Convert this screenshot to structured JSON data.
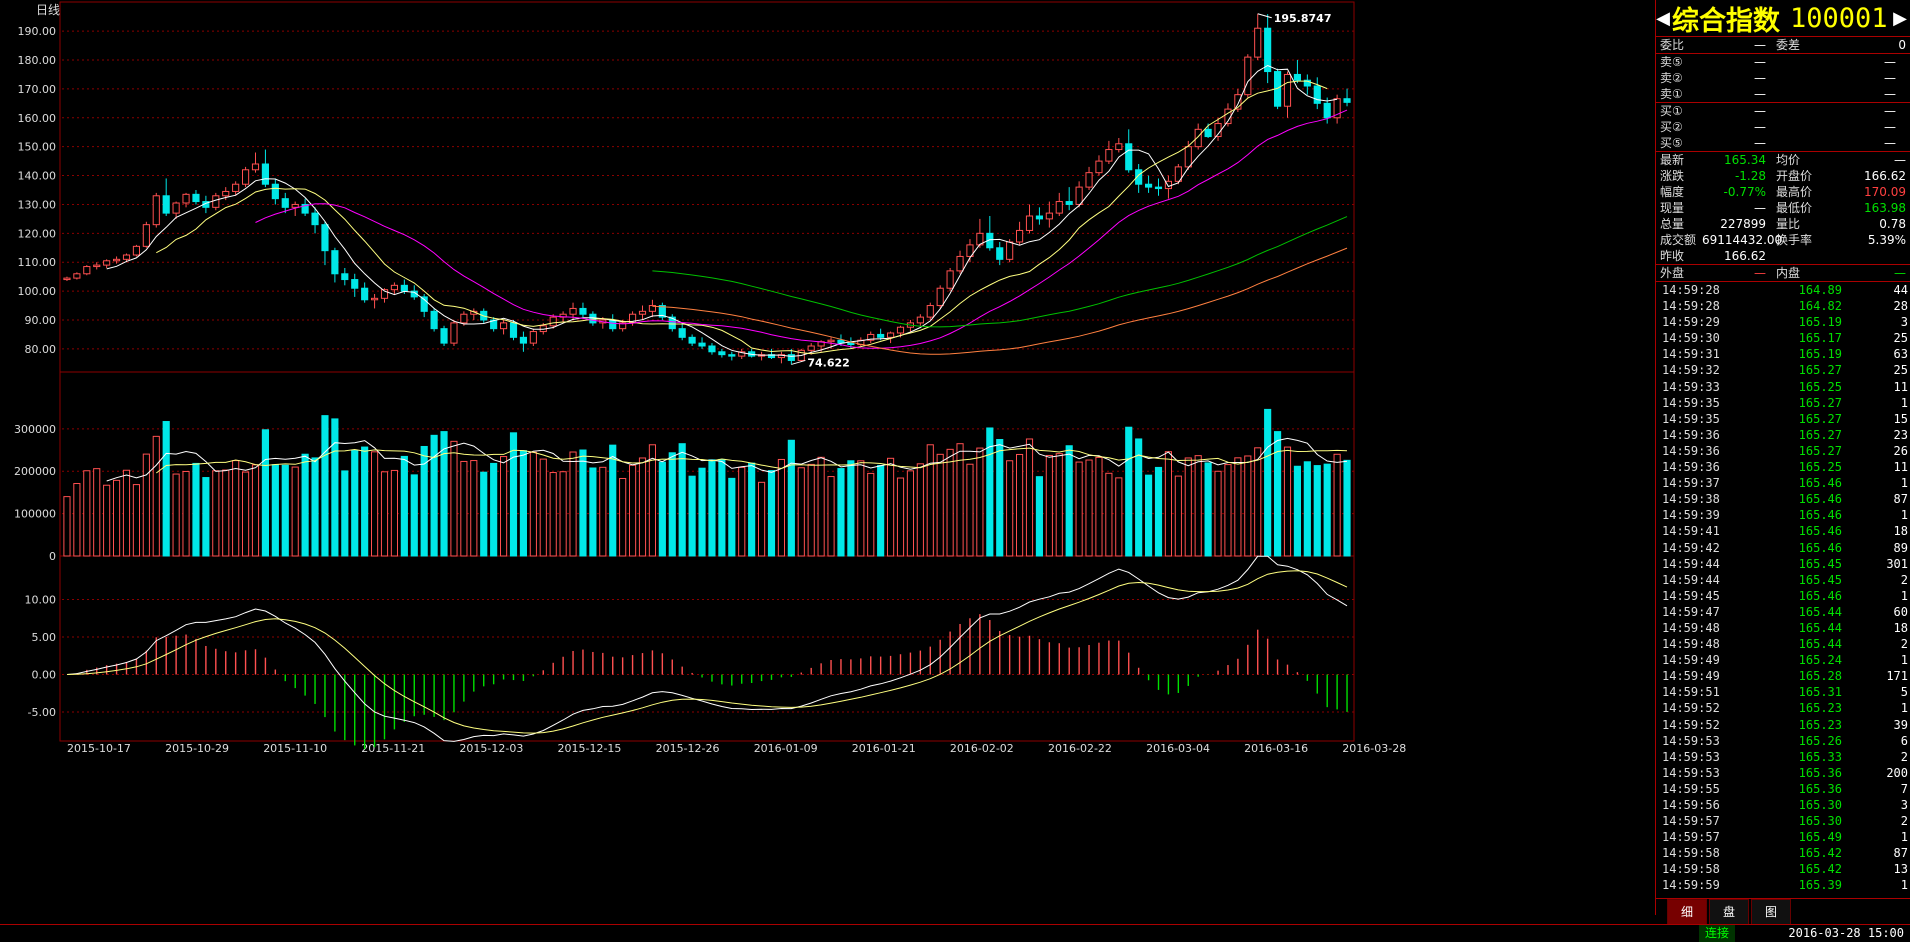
{
  "chart": {
    "period_label": "日线",
    "price_axis": [
      "190.00",
      "180.00",
      "170.00",
      "160.00",
      "150.00",
      "140.00",
      "130.00",
      "120.00",
      "110.00",
      "100.00",
      "90.00",
      "80.00"
    ],
    "vol_axis": [
      "300000",
      "200000",
      "100000",
      "0"
    ],
    "macd_axis": [
      "10.00",
      "5.00",
      "0.00",
      "-5.00"
    ],
    "dates": [
      "2015-10-17",
      "2015-10-29",
      "2015-11-10",
      "2015-11-21",
      "2015-12-03",
      "2015-12-15",
      "2015-12-26",
      "2016-01-09",
      "2016-01-21",
      "2016-02-02",
      "2016-02-22",
      "2016-03-04",
      "2016-03-16",
      "2016-03-28"
    ],
    "high_marker": "195.8747",
    "low_marker": "74.622",
    "colors": {
      "up": "#ff5050",
      "down": "#00e8e8",
      "grid": "#8b0000",
      "ma5": "#ffffff",
      "ma10": "#ffff80",
      "ma20": "#ff00ff",
      "ma60": "#00c000",
      "ma120": "#ff8040"
    }
  },
  "chart_data": {
    "type": "candlestick",
    "title": "",
    "ylim": [
      72,
      198
    ],
    "ohlc": [
      [
        104,
        105,
        103.5,
        104.5
      ],
      [
        104.5,
        106.5,
        104,
        106
      ],
      [
        106,
        109,
        105.5,
        108.5
      ],
      [
        108.5,
        110,
        107.5,
        109
      ],
      [
        109,
        111,
        108,
        110.5
      ],
      [
        110.5,
        112,
        109.5,
        111
      ],
      [
        111,
        113,
        110,
        112.5
      ],
      [
        112.5,
        116,
        112,
        115.5
      ],
      [
        115.5,
        124,
        115,
        123
      ],
      [
        123,
        134,
        122,
        133
      ],
      [
        133,
        139,
        126,
        127
      ],
      [
        127,
        131,
        125,
        130.5
      ],
      [
        130.5,
        134,
        129,
        133.5
      ],
      [
        133.5,
        135,
        130,
        131
      ],
      [
        131,
        133,
        127,
        129
      ],
      [
        129,
        134,
        128,
        133
      ],
      [
        133,
        136,
        131.5,
        134.5
      ],
      [
        134.5,
        138,
        133,
        137
      ],
      [
        137,
        143,
        136,
        142
      ],
      [
        142,
        148,
        141,
        144
      ],
      [
        144,
        149,
        136,
        137
      ],
      [
        137,
        139,
        130,
        132
      ],
      [
        132,
        134,
        127,
        129
      ],
      [
        129,
        131,
        126,
        130
      ],
      [
        130,
        132,
        126,
        127
      ],
      [
        127,
        129,
        120,
        123
      ],
      [
        123,
        124,
        109,
        114
      ],
      [
        114,
        115,
        103,
        106
      ],
      [
        106,
        108,
        102,
        104
      ],
      [
        104,
        106,
        98,
        101
      ],
      [
        101,
        103,
        96,
        97
      ],
      [
        97,
        99,
        94,
        97.5
      ],
      [
        97.5,
        101,
        96,
        100.5
      ],
      [
        100.5,
        103,
        99,
        102
      ],
      [
        102,
        104,
        99,
        100
      ],
      [
        100,
        102,
        97,
        98
      ],
      [
        98,
        99,
        91,
        93
      ],
      [
        93,
        94,
        86,
        87
      ],
      [
        87,
        88,
        81,
        82
      ],
      [
        82,
        90,
        81,
        89
      ],
      [
        89,
        93,
        88,
        92
      ],
      [
        92,
        94,
        90,
        93
      ],
      [
        93,
        94,
        89,
        90
      ],
      [
        90,
        91,
        86,
        87
      ],
      [
        87,
        90,
        85,
        89
      ],
      [
        89,
        90,
        83,
        84
      ],
      [
        84,
        86,
        79,
        82
      ],
      [
        82,
        87,
        81,
        86
      ],
      [
        86,
        89,
        85,
        88
      ],
      [
        88,
        92,
        87,
        91
      ],
      [
        91,
        93,
        89,
        92
      ],
      [
        92,
        96,
        90,
        94
      ],
      [
        94,
        96,
        91,
        92
      ],
      [
        92,
        93,
        88,
        89
      ],
      [
        89,
        91,
        87,
        90
      ],
      [
        90,
        92,
        86,
        87
      ],
      [
        87,
        90,
        86,
        89
      ],
      [
        89,
        93,
        88,
        92
      ],
      [
        92,
        95,
        90,
        93
      ],
      [
        93,
        97,
        91,
        95
      ],
      [
        95,
        96,
        90,
        91
      ],
      [
        91,
        92,
        86,
        87
      ],
      [
        87,
        89,
        83,
        84
      ],
      [
        84,
        85,
        81,
        82
      ],
      [
        82,
        84,
        80,
        81
      ],
      [
        81,
        82,
        78,
        79
      ],
      [
        79,
        80,
        77,
        78
      ],
      [
        78,
        79,
        76,
        77.5
      ],
      [
        77.5,
        80,
        76.5,
        79
      ],
      [
        79,
        80,
        77,
        77.5
      ],
      [
        77.5,
        79,
        76,
        78
      ],
      [
        78,
        80,
        76.5,
        77
      ],
      [
        77,
        79,
        75,
        78
      ],
      [
        78,
        80,
        74.622,
        76
      ],
      [
        76,
        80,
        75.5,
        79.5
      ],
      [
        79.5,
        82,
        78,
        81
      ],
      [
        81,
        83,
        79,
        82.5
      ],
      [
        82.5,
        84,
        80,
        83
      ],
      [
        83,
        85,
        81,
        82
      ],
      [
        82,
        84,
        80,
        81.5
      ],
      [
        81.5,
        84,
        81,
        83
      ],
      [
        83,
        86,
        82,
        85
      ],
      [
        85,
        87,
        83,
        84
      ],
      [
        84,
        86,
        82,
        85.5
      ],
      [
        85.5,
        88,
        84,
        87.5
      ],
      [
        87.5,
        90,
        86,
        89
      ],
      [
        89,
        92,
        88,
        91
      ],
      [
        91,
        96,
        90,
        95
      ],
      [
        95,
        102,
        94,
        101
      ],
      [
        101,
        108,
        100,
        107
      ],
      [
        107,
        114,
        106,
        112
      ],
      [
        112,
        118,
        110,
        116
      ],
      [
        116,
        125,
        115,
        120
      ],
      [
        120,
        126,
        114,
        115
      ],
      [
        115,
        117,
        109,
        111
      ],
      [
        111,
        118,
        110,
        117
      ],
      [
        117,
        124,
        116,
        121
      ],
      [
        121,
        130,
        120,
        126
      ],
      [
        126,
        129,
        123,
        125
      ],
      [
        125,
        131,
        122,
        127
      ],
      [
        127,
        134,
        126,
        131
      ],
      [
        131,
        136,
        128,
        130
      ],
      [
        130,
        138,
        129,
        136
      ],
      [
        136,
        143,
        135,
        141
      ],
      [
        141,
        147,
        140,
        145
      ],
      [
        145,
        152,
        144,
        149
      ],
      [
        149,
        153,
        148,
        151
      ],
      [
        151,
        156,
        141,
        142
      ],
      [
        142,
        144,
        134,
        137
      ],
      [
        137,
        140,
        134,
        136
      ],
      [
        136,
        139,
        133,
        135.5
      ],
      [
        135.5,
        140,
        132,
        138
      ],
      [
        138,
        144,
        137,
        143
      ],
      [
        143,
        152,
        142,
        150
      ],
      [
        150,
        158,
        149,
        156
      ],
      [
        156,
        158,
        153,
        153.5
      ],
      [
        153.5,
        160,
        152,
        158
      ],
      [
        158,
        165,
        157,
        163
      ],
      [
        163,
        170,
        162,
        168
      ],
      [
        168,
        182,
        167,
        181
      ],
      [
        181,
        196,
        180,
        191
      ],
      [
        191,
        195.8747,
        172,
        176
      ],
      [
        176,
        177,
        163,
        164
      ],
      [
        164,
        176,
        160,
        175
      ],
      [
        175,
        180,
        172,
        173
      ],
      [
        173,
        175,
        168,
        171
      ],
      [
        171,
        174,
        163,
        165
      ],
      [
        165,
        167,
        158,
        160
      ],
      [
        160,
        168,
        158,
        166.6
      ],
      [
        166.6,
        170.09,
        163.98,
        165.34
      ]
    ],
    "ma5": [
      null,
      null,
      null,
      null,
      107.7,
      108.6,
      110.3,
      111.5,
      114.3,
      118.9,
      122.1,
      125.5,
      127.1,
      128.7,
      130.4,
      131.5,
      132.4,
      133.2,
      135.5,
      138.2,
      138.9,
      138.8,
      137.4,
      135.3,
      132.4,
      128.6,
      124.1,
      118.9,
      114.5,
      109.6,
      106,
      102.8,
      100,
      98.8,
      99.9,
      99.6,
      97.1,
      94,
      91.5,
      89.6,
      88.6,
      88.6,
      88.8,
      89.8,
      90.6,
      89.6,
      87.9,
      86.8,
      86.8,
      87.4,
      88.9,
      90.2,
      90.8,
      90.8,
      90.4,
      89.9,
      89.4,
      89.5,
      90.1,
      91.4,
      91.6,
      90.6,
      89,
      87.6,
      85.6,
      83.4,
      81.1,
      79.5,
      78.7,
      78.1,
      77.8,
      77.9,
      77.8,
      77.4,
      77.7,
      78.8,
      79.6,
      80.7,
      81.9,
      82.5,
      82.8,
      83.4,
      83.5,
      83.7,
      84.6,
      85.8,
      87.4,
      89.7,
      93.8,
      99.2,
      105.4,
      111.6,
      116.2,
      117.8,
      117.9,
      116.9,
      115.9,
      117.1,
      117.8,
      120.3,
      123.2,
      126.8,
      129.6,
      133.8,
      138.4,
      141.5,
      146.4,
      148.8,
      148.8,
      147.5,
      142.3,
      136.2,
      137.5,
      142.7,
      146.7,
      150.2,
      154.3,
      158.9,
      164.7,
      172.5,
      176.1,
      178.1,
      176.6,
      176.8,
      170.2,
      167.6,
      166.3,
      165.8,
      166.4
    ],
    "ma10": [
      null,
      null,
      null,
      null,
      null,
      null,
      null,
      null,
      null,
      113.3,
      115.1,
      117.9,
      119.3,
      121.5,
      124.7,
      126.8,
      128.9,
      130.1,
      132.1,
      134.3,
      135.2,
      135.6,
      135.3,
      135.4,
      135.3,
      133.8,
      131.5,
      128.1,
      124.9,
      121,
      117.3,
      113.4,
      109.4,
      106.6,
      104.7,
      102.8,
      100,
      97,
      95.1,
      94.7,
      94.1,
      92.8,
      91.4,
      90.6,
      90.1,
      89.1,
      88.2,
      87.8,
      88.3,
      89,
      89.3,
      89.4,
      89.8,
      90.3,
      90.5,
      90.2,
      89.6,
      89.2,
      88.7,
      88.6,
      88.7,
      88.6,
      88.6,
      88.3,
      88.2,
      87.5,
      86.4,
      84.6,
      82.8,
      80.3,
      79.6,
      79.1,
      79.3,
      79.4,
      78.7,
      78.3,
      78.8,
      79.3,
      79.8,
      80.1,
      80.8,
      81.6,
      82.6,
      83.6,
      84.7,
      85.5,
      86.4,
      87.8,
      90.3,
      92.8,
      95.7,
      98.3,
      100.3,
      102.1,
      103.8,
      105.1,
      105.8,
      106.8,
      109.3,
      111.6,
      114.4,
      117.7,
      121.9,
      124.7,
      127.1,
      129.3,
      132.9,
      136.3,
      140.2,
      142.6,
      144.6,
      146.4,
      148.1,
      150.2,
      153.5,
      157.3,
      159.4,
      161.6,
      163.6,
      166.8,
      168.5,
      169.3,
      170.2,
      172.2,
      172.7,
      172.7,
      171.5,
      170.1
    ]
  },
  "side": {
    "name": "综合指数",
    "code": "100001",
    "ratio_label": "委比",
    "ratio_value": "—",
    "diff_label": "委差",
    "diff_value": "0",
    "asks": [
      {
        "label": "卖⑤",
        "p": "—",
        "v": "—"
      },
      {
        "label": "卖②",
        "p": "—",
        "v": "—"
      },
      {
        "label": "卖①",
        "p": "—",
        "v": "—"
      }
    ],
    "bids": [
      {
        "label": "买①",
        "p": "—",
        "v": "—"
      },
      {
        "label": "买②",
        "p": "—",
        "v": "—"
      },
      {
        "label": "买⑤",
        "p": "—",
        "v": "—"
      }
    ],
    "stats": [
      {
        "l1": "最新",
        "v1": "165.34",
        "c1": "c-green",
        "l2": "均价",
        "v2": "—",
        "c2": "c-white"
      },
      {
        "l1": "涨跌",
        "v1": "-1.28",
        "c1": "c-green",
        "l2": "开盘价",
        "v2": "166.62",
        "c2": "c-white"
      },
      {
        "l1": "幅度",
        "v1": "-0.77%",
        "c1": "c-green",
        "l2": "最高价",
        "v2": "170.09",
        "c2": "c-red"
      },
      {
        "l1": "现量",
        "v1": "—",
        "c1": "c-white",
        "l2": "最低价",
        "v2": "163.98",
        "c2": "c-green"
      },
      {
        "l1": "总量",
        "v1": "227899",
        "c1": "c-white",
        "l2": "量比",
        "v2": "0.78",
        "c2": "c-white"
      },
      {
        "l1": "成交额",
        "v1": "69114432.00",
        "c1": "c-white",
        "l2": "换手率",
        "v2": "5.39%",
        "c2": "c-white"
      },
      {
        "l1": "昨收",
        "v1": "166.62",
        "c1": "c-white",
        "l2": "",
        "v2": "",
        "c2": "c-white"
      }
    ],
    "outer_label": "外盘",
    "outer_value": "—",
    "inner_label": "内盘",
    "inner_value": "—",
    "ticks": [
      [
        "14:59:28",
        "164.89",
        "44"
      ],
      [
        "14:59:28",
        "164.82",
        "28"
      ],
      [
        "14:59:29",
        "165.19",
        "3"
      ],
      [
        "14:59:30",
        "165.17",
        "25"
      ],
      [
        "14:59:31",
        "165.19",
        "63"
      ],
      [
        "14:59:32",
        "165.27",
        "25"
      ],
      [
        "14:59:33",
        "165.25",
        "11"
      ],
      [
        "14:59:35",
        "165.27",
        "1"
      ],
      [
        "14:59:35",
        "165.27",
        "15"
      ],
      [
        "14:59:36",
        "165.27",
        "23"
      ],
      [
        "14:59:36",
        "165.27",
        "26"
      ],
      [
        "14:59:36",
        "165.25",
        "11"
      ],
      [
        "14:59:37",
        "165.46",
        "1"
      ],
      [
        "14:59:38",
        "165.46",
        "87"
      ],
      [
        "14:59:39",
        "165.46",
        "1"
      ],
      [
        "14:59:41",
        "165.46",
        "18"
      ],
      [
        "14:59:42",
        "165.46",
        "89"
      ],
      [
        "14:59:44",
        "165.45",
        "301"
      ],
      [
        "14:59:44",
        "165.45",
        "2"
      ],
      [
        "14:59:45",
        "165.46",
        "1"
      ],
      [
        "14:59:47",
        "165.44",
        "60"
      ],
      [
        "14:59:48",
        "165.44",
        "18"
      ],
      [
        "14:59:48",
        "165.44",
        "2"
      ],
      [
        "14:59:49",
        "165.24",
        "1"
      ],
      [
        "14:59:49",
        "165.28",
        "171"
      ],
      [
        "14:59:51",
        "165.31",
        "5"
      ],
      [
        "14:59:52",
        "165.23",
        "1"
      ],
      [
        "14:59:52",
        "165.23",
        "39"
      ],
      [
        "14:59:53",
        "165.26",
        "6"
      ],
      [
        "14:59:53",
        "165.33",
        "2"
      ],
      [
        "14:59:53",
        "165.36",
        "200"
      ],
      [
        "14:59:55",
        "165.36",
        "7"
      ],
      [
        "14:59:56",
        "165.30",
        "3"
      ],
      [
        "14:59:57",
        "165.30",
        "2"
      ],
      [
        "14:59:57",
        "165.49",
        "1"
      ],
      [
        "14:59:58",
        "165.42",
        "87"
      ],
      [
        "14:59:58",
        "165.42",
        "13"
      ],
      [
        "14:59:59",
        "165.39",
        "1"
      ]
    ],
    "tabs": [
      "细",
      "盘",
      "图"
    ]
  },
  "status": {
    "connection": "连接",
    "datetime": "2016-03-28 15:00"
  }
}
